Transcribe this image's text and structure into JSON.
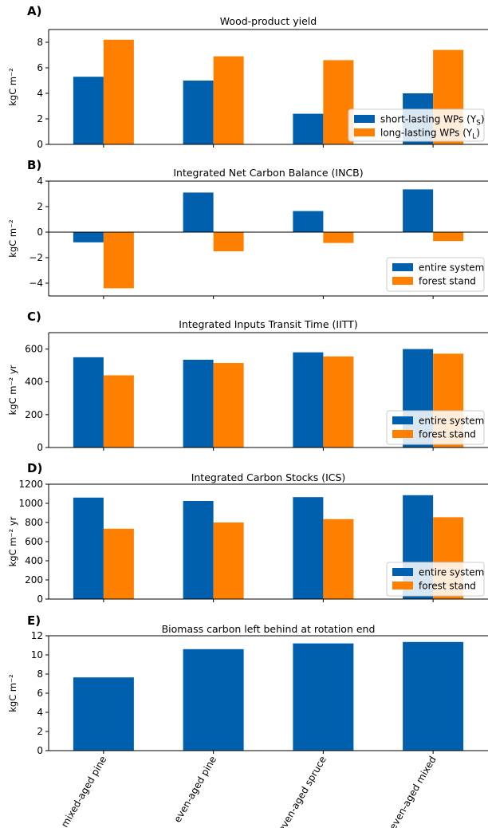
{
  "categories": [
    "mixed-aged pine",
    "even-aged pine",
    "even-aged spruce",
    "even-aged mixed"
  ],
  "colors": {
    "series1": "#0060ad",
    "series2": "#ff7f00"
  },
  "chart_data": [
    {
      "type": "bar",
      "letter": "A)",
      "title": "Wood-product yield",
      "ylabel": "kgC m⁻²",
      "ylim": [
        0,
        9
      ],
      "yticks": [
        0,
        2,
        4,
        6,
        8
      ],
      "legend_position": "right",
      "categories": [
        "mixed-aged pine",
        "even-aged pine",
        "even-aged spruce",
        "even-aged mixed"
      ],
      "series": [
        {
          "name": "short-lasting WPs (Y",
          "sub": "S",
          "suffix": ")",
          "values": [
            5.3,
            5.0,
            2.4,
            4.0
          ]
        },
        {
          "name": "long-lasting WPs (Y",
          "sub": "L",
          "suffix": ")",
          "values": [
            8.2,
            6.9,
            6.6,
            7.4
          ]
        }
      ]
    },
    {
      "type": "bar",
      "letter": "B)",
      "title": "Integrated Net Carbon Balance (INCB)",
      "ylabel": "kgC m⁻²",
      "ylim": [
        -5,
        4
      ],
      "yticks": [
        -4,
        -2,
        0,
        2,
        4
      ],
      "zero_line": true,
      "legend_position": "lower right",
      "categories": [
        "mixed-aged pine",
        "even-aged pine",
        "even-aged spruce",
        "even-aged mixed"
      ],
      "series": [
        {
          "name": "entire system",
          "values": [
            -0.8,
            3.1,
            1.65,
            3.35
          ]
        },
        {
          "name": "forest stand",
          "values": [
            -4.4,
            -1.5,
            -0.85,
            -0.7
          ]
        }
      ]
    },
    {
      "type": "bar",
      "letter": "C)",
      "title": "Integrated Inputs Transit Time (IITT)",
      "ylabel": "kgC m⁻² yr",
      "ylim": [
        0,
        700
      ],
      "yticks": [
        0,
        200,
        400,
        600
      ],
      "legend_position": "lower right",
      "categories": [
        "mixed-aged pine",
        "even-aged pine",
        "even-aged spruce",
        "even-aged mixed"
      ],
      "series": [
        {
          "name": "entire system",
          "values": [
            550,
            535,
            580,
            600
          ]
        },
        {
          "name": "forest stand",
          "values": [
            440,
            515,
            555,
            572
          ]
        }
      ]
    },
    {
      "type": "bar",
      "letter": "D)",
      "title": "Integrated Carbon Stocks (ICS)",
      "ylabel": "kgC m⁻² yr",
      "ylim": [
        0,
        1200
      ],
      "yticks": [
        0,
        200,
        400,
        600,
        800,
        1000,
        1200
      ],
      "legend_position": "lower right",
      "categories": [
        "mixed-aged pine",
        "even-aged pine",
        "even-aged spruce",
        "even-aged mixed"
      ],
      "series": [
        {
          "name": "entire system",
          "values": [
            1060,
            1025,
            1065,
            1085
          ]
        },
        {
          "name": "forest stand",
          "values": [
            735,
            800,
            835,
            855
          ]
        }
      ]
    },
    {
      "type": "bar",
      "letter": "E)",
      "title": "Biomass carbon left behind at rotation end",
      "ylabel": "kgC m⁻²",
      "ylim": [
        0,
        12
      ],
      "yticks": [
        0,
        2,
        4,
        6,
        8,
        10,
        12
      ],
      "legend_position": "none",
      "categories": [
        "mixed-aged pine",
        "even-aged pine",
        "even-aged spruce",
        "even-aged mixed"
      ],
      "series": [
        {
          "values": [
            7.65,
            10.6,
            11.2,
            11.35
          ]
        }
      ]
    }
  ]
}
